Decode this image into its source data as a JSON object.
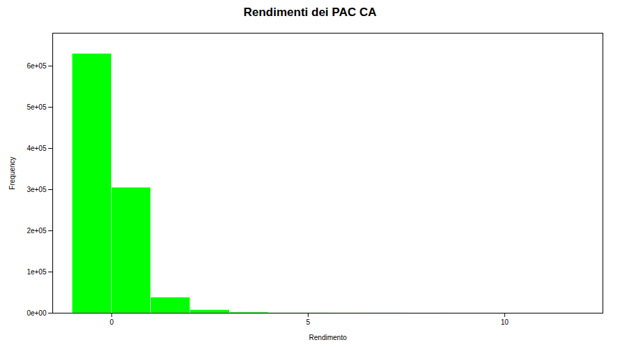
{
  "chart_data": {
    "type": "histogram",
    "title": "Rendimenti dei PAC CA",
    "xlabel": "Rendimento",
    "ylabel": "Frequency",
    "bins": [
      -1.0,
      0.0,
      1.0,
      2.0,
      3.0,
      4.0,
      4.5,
      5.5,
      6.5,
      7.5,
      8.5,
      9.5,
      11.0
    ],
    "values": [
      630000,
      305000,
      38000,
      7500,
      2000,
      800,
      400,
      200,
      100,
      60,
      30,
      15
    ],
    "color": "#00FF00",
    "xlim": [
      -1.5,
      12.5
    ],
    "xticks": [
      0,
      5,
      10
    ],
    "ylim": [
      0,
      680000
    ],
    "yticks": [
      {
        "value": 0,
        "label": "0e+00"
      },
      {
        "value": 100000,
        "label": "1e+05"
      },
      {
        "value": 200000,
        "label": "2e+05"
      },
      {
        "value": 300000,
        "label": "3e+05"
      },
      {
        "value": 400000,
        "label": "4e+05"
      },
      {
        "value": 500000,
        "label": "5e+05"
      },
      {
        "value": 600000,
        "label": "6e+05"
      }
    ],
    "grid": false
  }
}
